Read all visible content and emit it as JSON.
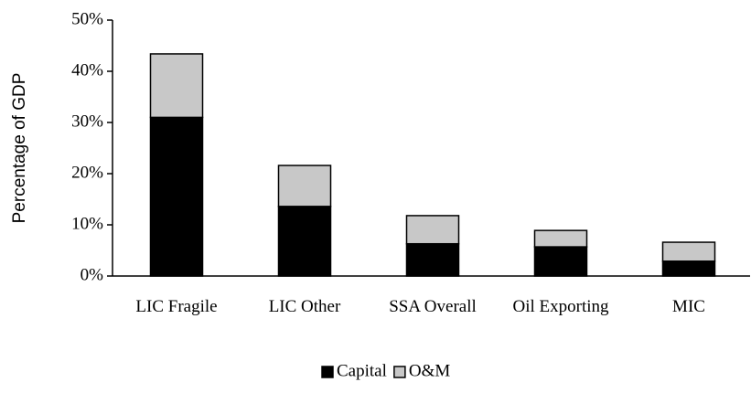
{
  "chart_data": {
    "type": "stacked-bar",
    "y_axis_label": "Percentage of GDP",
    "categories": [
      "LIC Fragile",
      "LIC Other",
      "SSA Overall",
      "Oil Exporting",
      "MIC"
    ],
    "series": [
      {
        "name": "Capital",
        "color": "#000000",
        "values": [
          31,
          13.6,
          6.3,
          5.7,
          2.9
        ]
      },
      {
        "name": "O&M",
        "color": "#c8c8c8",
        "values": [
          12.4,
          8.0,
          5.5,
          3.2,
          3.7
        ]
      }
    ],
    "ylim": [
      0,
      50
    ],
    "yticks": [
      {
        "value": 0,
        "label": "0%"
      },
      {
        "value": 10,
        "label": "10%"
      },
      {
        "value": 20,
        "label": "20%"
      },
      {
        "value": 30,
        "label": "30%"
      },
      {
        "value": 40,
        "label": "40%"
      },
      {
        "value": 50,
        "label": "50%"
      }
    ],
    "legend": "bottom"
  }
}
